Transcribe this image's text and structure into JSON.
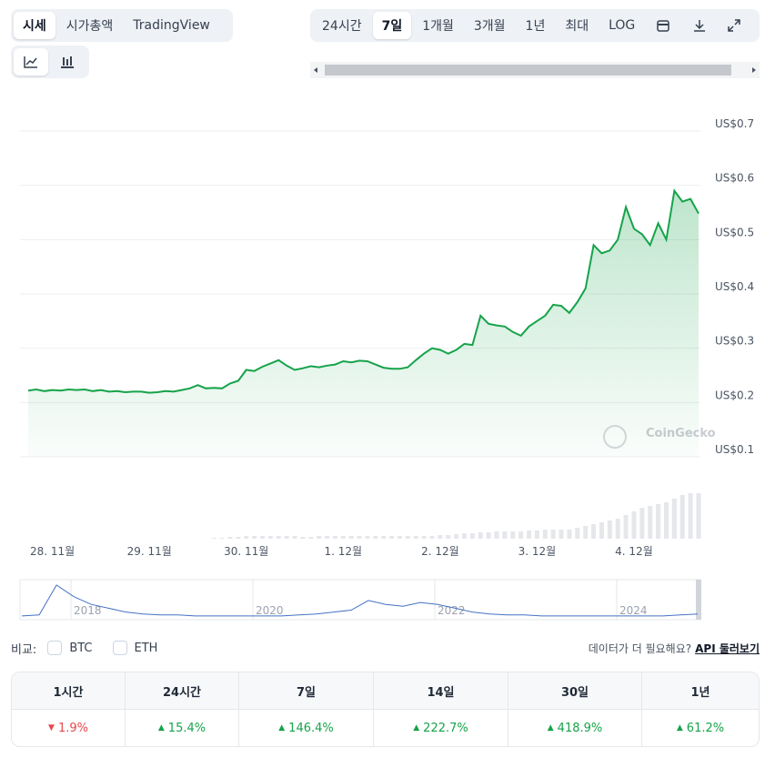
{
  "tabs": [
    "시세",
    "시가총액",
    "TradingView"
  ],
  "ranges": [
    "24시간",
    "7일",
    "1개월",
    "3개월",
    "1년",
    "최대",
    "LOG"
  ],
  "chart_data": {
    "type": "line",
    "color": "#16a34a",
    "watermark": "CoinGecko",
    "grid": true,
    "categories": [
      null,
      null,
      null,
      "28. 11월",
      null,
      null,
      null,
      null,
      null,
      null,
      null,
      null,
      null,
      null,
      null,
      "29. 11월",
      null,
      null,
      null,
      null,
      null,
      null,
      null,
      null,
      null,
      null,
      null,
      "30. 11월",
      null,
      null,
      null,
      null,
      null,
      null,
      null,
      null,
      null,
      null,
      null,
      "1. 12월",
      null,
      null,
      null,
      null,
      null,
      null,
      null,
      null,
      null,
      null,
      null,
      "2. 12월",
      null,
      null,
      null,
      null,
      null,
      null,
      null,
      null,
      null,
      null,
      null,
      "3. 12월",
      null,
      null,
      null,
      null,
      null,
      null,
      null,
      null,
      null,
      null,
      null,
      "4. 12월",
      null,
      null,
      null,
      null,
      null,
      null,
      null,
      null
    ],
    "values": [
      0.222,
      0.224,
      0.221,
      0.223,
      0.222,
      0.224,
      0.223,
      0.224,
      0.221,
      0.223,
      0.22,
      0.221,
      0.219,
      0.22,
      0.22,
      0.218,
      0.219,
      0.221,
      0.22,
      0.223,
      0.226,
      0.232,
      0.226,
      0.227,
      0.226,
      0.235,
      0.24,
      0.26,
      0.258,
      0.266,
      0.272,
      0.278,
      0.268,
      0.26,
      0.263,
      0.267,
      0.265,
      0.268,
      0.27,
      0.276,
      0.274,
      0.277,
      0.276,
      0.27,
      0.264,
      0.262,
      0.262,
      0.265,
      0.278,
      0.29,
      0.3,
      0.297,
      0.29,
      0.297,
      0.308,
      0.306,
      0.36,
      0.345,
      0.342,
      0.34,
      0.33,
      0.323,
      0.34,
      0.35,
      0.36,
      0.38,
      0.378,
      0.365,
      0.385,
      0.41,
      0.49,
      0.475,
      0.48,
      0.5,
      0.56,
      0.52,
      0.51,
      0.49,
      0.53,
      0.5,
      0.59,
      0.57,
      0.575,
      0.548
    ],
    "volumes": [
      0,
      0,
      0,
      0,
      0,
      0,
      0,
      0,
      0,
      0,
      0,
      0,
      0,
      0,
      0,
      0,
      0,
      0,
      0,
      0,
      0,
      0,
      0,
      1,
      1,
      2,
      2,
      3,
      3,
      3,
      3,
      3,
      3,
      3,
      2,
      2,
      3,
      3,
      3,
      3,
      3,
      3,
      3,
      3,
      3,
      3,
      3,
      3,
      3,
      3,
      3,
      4,
      4,
      5,
      6,
      6,
      7,
      7,
      8,
      8,
      8,
      8,
      9,
      9,
      10,
      10,
      10,
      10,
      12,
      14,
      16,
      18,
      20,
      22,
      26,
      30,
      34,
      36,
      38,
      40,
      44,
      48,
      50,
      50
    ],
    "ylim": [
      0.1,
      0.7
    ],
    "yticks": [
      {
        "value": 0.1,
        "label": "US$0.1"
      },
      {
        "value": 0.2,
        "label": "US$0.2"
      },
      {
        "value": 0.3,
        "label": "US$0.3"
      },
      {
        "value": 0.4,
        "label": "US$0.4"
      },
      {
        "value": 0.5,
        "label": "US$0.5"
      },
      {
        "value": 0.6,
        "label": "US$0.6"
      },
      {
        "value": 0.7,
        "label": "US$0.7"
      }
    ]
  },
  "navigator": {
    "labels": [
      "2018",
      "2020",
      "2022",
      "2024"
    ],
    "values": [
      2,
      3,
      34,
      22,
      14,
      10,
      6,
      4,
      3,
      3,
      2,
      2,
      2,
      2,
      2,
      2,
      3,
      4,
      6,
      8,
      18,
      14,
      12,
      16,
      14,
      10,
      6,
      4,
      3,
      3,
      2,
      2,
      2,
      2,
      2,
      2,
      2,
      2,
      3,
      4
    ]
  },
  "compare": {
    "label": "비교:",
    "options": [
      "BTC",
      "ETH"
    ],
    "prompt": "데이터가 더 필요해요?",
    "link": "API 둘러보기"
  },
  "table": {
    "headers": [
      "1시간",
      "24시간",
      "7일",
      "14일",
      "30일",
      "1년"
    ],
    "cells": [
      {
        "text": "1.9%",
        "direction": "down"
      },
      {
        "text": "15.4%",
        "direction": "up"
      },
      {
        "text": "146.4%",
        "direction": "up"
      },
      {
        "text": "222.7%",
        "direction": "up"
      },
      {
        "text": "418.9%",
        "direction": "up"
      },
      {
        "text": "61.2%",
        "direction": "up"
      }
    ]
  }
}
